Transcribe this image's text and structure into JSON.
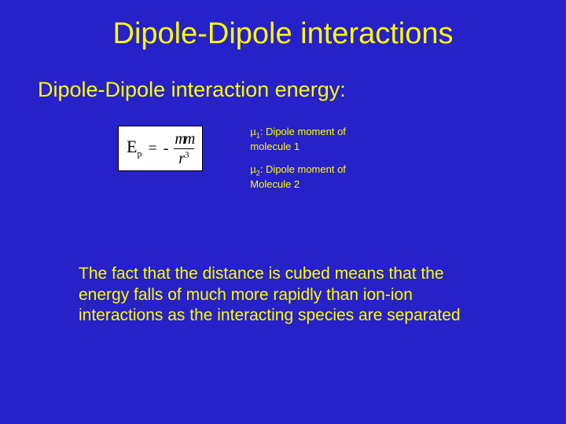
{
  "slide": {
    "background_color": "#2621c8",
    "text_color": "#ffff00",
    "title": "Dipole-Dipole interactions",
    "subtitle": "Dipole-Dipole interaction energy:",
    "formula": {
      "lhs": "E",
      "lhs_sub": "p",
      "numerator": "mm",
      "denominator_var": "r",
      "denominator_exp": "3",
      "box_bg": "#ffffff",
      "box_border": "#000000"
    },
    "legend": {
      "mu1_label": "µ",
      "mu1_sub": "1",
      "mu1_text": ":  Dipole moment of molecule 1",
      "mu2_label": "µ",
      "mu2_sub": "2",
      "mu2_text": ":  Dipole moment of Molecule 2"
    },
    "body": "The fact that the distance is cubed means that the energy falls of much more rapidly than ion-ion interactions as the interacting species are separated"
  }
}
